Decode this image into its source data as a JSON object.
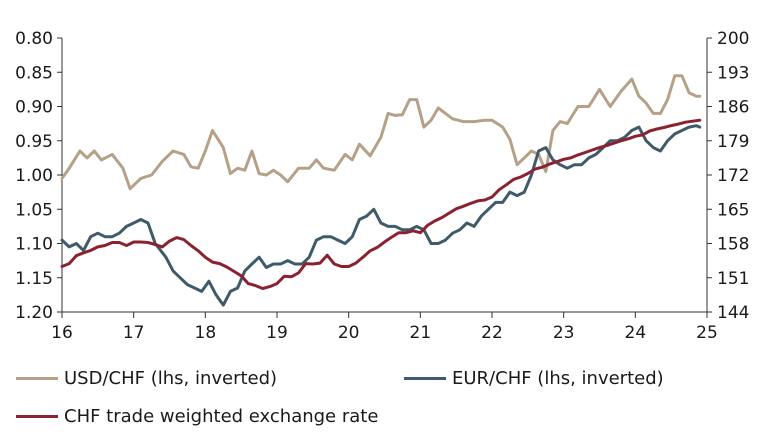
{
  "chart_data": {
    "type": "line",
    "title": "",
    "xlabel": "",
    "ylabel": "",
    "x_ticks": [
      "16",
      "17",
      "18",
      "19",
      "20",
      "21",
      "22",
      "23",
      "24",
      "25"
    ],
    "xlim": [
      16,
      25
    ],
    "y_left": {
      "ticks": [
        "0.80",
        "0.85",
        "0.90",
        "0.95",
        "1.00",
        "1.05",
        "1.10",
        "1.15",
        "1.20"
      ],
      "lim": [
        0.8,
        1.2
      ],
      "inverted": true
    },
    "y_right": {
      "ticks": [
        "200",
        "193",
        "186",
        "179",
        "172",
        "165",
        "158",
        "151",
        "144"
      ],
      "lim": [
        144,
        200
      ]
    },
    "grid": false,
    "legend_position": "bottom",
    "series": [
      {
        "name": "USD/CHF (lhs, inverted)",
        "axis": "left",
        "color": "#b5a088",
        "x": [
          16.0,
          16.1,
          16.25,
          16.35,
          16.45,
          16.55,
          16.7,
          16.85,
          16.95,
          17.1,
          17.25,
          17.4,
          17.55,
          17.7,
          17.8,
          17.9,
          18.0,
          18.1,
          18.25,
          18.35,
          18.45,
          18.55,
          18.65,
          18.75,
          18.85,
          18.95,
          19.05,
          19.15,
          19.3,
          19.45,
          19.55,
          19.65,
          19.8,
          19.95,
          20.05,
          20.15,
          20.3,
          20.45,
          20.55,
          20.65,
          20.75,
          20.85,
          20.95,
          21.05,
          21.15,
          21.25,
          21.35,
          21.45,
          21.6,
          21.75,
          21.9,
          22.0,
          22.15,
          22.25,
          22.35,
          22.45,
          22.55,
          22.65,
          22.75,
          22.85,
          22.95,
          23.05,
          23.2,
          23.35,
          23.5,
          23.65,
          23.8,
          23.95,
          24.05,
          24.15,
          24.25,
          24.35,
          24.45,
          24.55,
          24.65,
          24.75,
          24.85,
          24.9
        ],
        "values": [
          1.005,
          0.99,
          0.965,
          0.975,
          0.965,
          0.978,
          0.97,
          0.99,
          1.02,
          1.005,
          1.0,
          0.98,
          0.965,
          0.97,
          0.988,
          0.99,
          0.965,
          0.935,
          0.96,
          0.998,
          0.99,
          0.993,
          0.965,
          0.998,
          1.0,
          0.993,
          1.0,
          1.01,
          0.99,
          0.99,
          0.978,
          0.99,
          0.993,
          0.97,
          0.978,
          0.955,
          0.972,
          0.945,
          0.91,
          0.913,
          0.912,
          0.89,
          0.89,
          0.93,
          0.92,
          0.902,
          0.91,
          0.918,
          0.922,
          0.922,
          0.92,
          0.92,
          0.93,
          0.948,
          0.985,
          0.975,
          0.965,
          0.97,
          0.995,
          0.935,
          0.922,
          0.925,
          0.9,
          0.9,
          0.875,
          0.9,
          0.878,
          0.86,
          0.885,
          0.895,
          0.91,
          0.91,
          0.89,
          0.855,
          0.855,
          0.88,
          0.885,
          0.885
        ]
      },
      {
        "name": "EUR/CHF (lhs, inverted)",
        "axis": "left",
        "color": "#3f5a68",
        "x": [
          16.0,
          16.1,
          16.2,
          16.3,
          16.4,
          16.5,
          16.6,
          16.7,
          16.8,
          16.9,
          17.0,
          17.1,
          17.2,
          17.3,
          17.45,
          17.55,
          17.65,
          17.75,
          17.85,
          17.95,
          18.05,
          18.15,
          18.25,
          18.35,
          18.45,
          18.55,
          18.65,
          18.75,
          18.85,
          18.95,
          19.05,
          19.15,
          19.25,
          19.35,
          19.45,
          19.55,
          19.65,
          19.75,
          19.85,
          19.95,
          20.05,
          20.15,
          20.25,
          20.35,
          20.45,
          20.55,
          20.65,
          20.75,
          20.85,
          20.95,
          21.05,
          21.15,
          21.25,
          21.35,
          21.45,
          21.55,
          21.65,
          21.75,
          21.85,
          21.95,
          22.05,
          22.15,
          22.25,
          22.35,
          22.45,
          22.55,
          22.65,
          22.75,
          22.85,
          22.95,
          23.05,
          23.15,
          23.25,
          23.35,
          23.45,
          23.55,
          23.65,
          23.75,
          23.85,
          23.95,
          24.05,
          24.15,
          24.25,
          24.35,
          24.45,
          24.55,
          24.65,
          24.75,
          24.85,
          24.9
        ],
        "values": [
          1.095,
          1.105,
          1.1,
          1.11,
          1.09,
          1.085,
          1.09,
          1.09,
          1.085,
          1.075,
          1.07,
          1.065,
          1.07,
          1.1,
          1.12,
          1.14,
          1.15,
          1.16,
          1.165,
          1.17,
          1.155,
          1.175,
          1.19,
          1.17,
          1.165,
          1.14,
          1.13,
          1.12,
          1.135,
          1.13,
          1.13,
          1.125,
          1.13,
          1.13,
          1.12,
          1.095,
          1.09,
          1.09,
          1.095,
          1.1,
          1.09,
          1.065,
          1.06,
          1.05,
          1.07,
          1.075,
          1.075,
          1.08,
          1.08,
          1.075,
          1.08,
          1.1,
          1.1,
          1.095,
          1.085,
          1.08,
          1.07,
          1.075,
          1.06,
          1.05,
          1.04,
          1.04,
          1.025,
          1.03,
          1.025,
          1.0,
          0.965,
          0.96,
          0.978,
          0.985,
          0.99,
          0.985,
          0.985,
          0.975,
          0.97,
          0.96,
          0.95,
          0.95,
          0.945,
          0.935,
          0.93,
          0.95,
          0.96,
          0.965,
          0.95,
          0.94,
          0.935,
          0.93,
          0.928,
          0.93
        ]
      },
      {
        "name": "CHF trade weighted exchange rate",
        "axis": "right",
        "color": "#8b2232",
        "x": [
          16.0,
          16.1,
          16.2,
          16.3,
          16.4,
          16.5,
          16.6,
          16.7,
          16.8,
          16.9,
          17.0,
          17.1,
          17.2,
          17.3,
          17.4,
          17.5,
          17.6,
          17.7,
          17.8,
          17.9,
          18.0,
          18.1,
          18.2,
          18.3,
          18.4,
          18.5,
          18.6,
          18.7,
          18.8,
          18.9,
          19.0,
          19.1,
          19.2,
          19.3,
          19.4,
          19.5,
          19.6,
          19.7,
          19.8,
          19.9,
          20.0,
          20.1,
          20.2,
          20.3,
          20.4,
          20.5,
          20.6,
          20.7,
          20.8,
          20.9,
          21.0,
          21.1,
          21.2,
          21.3,
          21.4,
          21.5,
          21.6,
          21.7,
          21.8,
          21.9,
          22.0,
          22.1,
          22.2,
          22.3,
          22.4,
          22.5,
          22.6,
          22.7,
          22.8,
          22.9,
          23.0,
          23.1,
          23.2,
          23.3,
          23.4,
          23.5,
          23.6,
          23.7,
          23.8,
          23.9,
          24.0,
          24.1,
          24.2,
          24.3,
          24.4,
          24.5,
          24.6,
          24.7,
          24.8,
          24.9
        ],
        "values": [
          153.3,
          153.9,
          155.5,
          156.1,
          156.6,
          157.3,
          157.6,
          158.2,
          158.2,
          157.6,
          158.3,
          158.3,
          158.2,
          157.8,
          157.3,
          158.5,
          159.2,
          158.8,
          157.6,
          156.5,
          155.2,
          154.2,
          153.9,
          153.2,
          152.3,
          151.4,
          149.8,
          149.4,
          148.8,
          149.2,
          149.8,
          151.3,
          151.2,
          152.0,
          153.9,
          153.8,
          154.0,
          155.6,
          153.8,
          153.3,
          153.3,
          154.0,
          155.2,
          156.5,
          157.2,
          158.3,
          159.3,
          160.2,
          160.2,
          160.6,
          160.2,
          161.7,
          162.6,
          163.3,
          164.2,
          165.1,
          165.6,
          166.2,
          166.7,
          166.9,
          167.5,
          169.0,
          170.0,
          171.1,
          171.6,
          172.3,
          173.2,
          173.6,
          174.2,
          174.7,
          175.2,
          175.5,
          176.1,
          176.6,
          177.1,
          177.6,
          178.0,
          178.5,
          179.0,
          179.4,
          179.9,
          180.2,
          181.0,
          181.4,
          181.7,
          182.1,
          182.4,
          182.8,
          183.0,
          183.2
        ]
      }
    ]
  }
}
